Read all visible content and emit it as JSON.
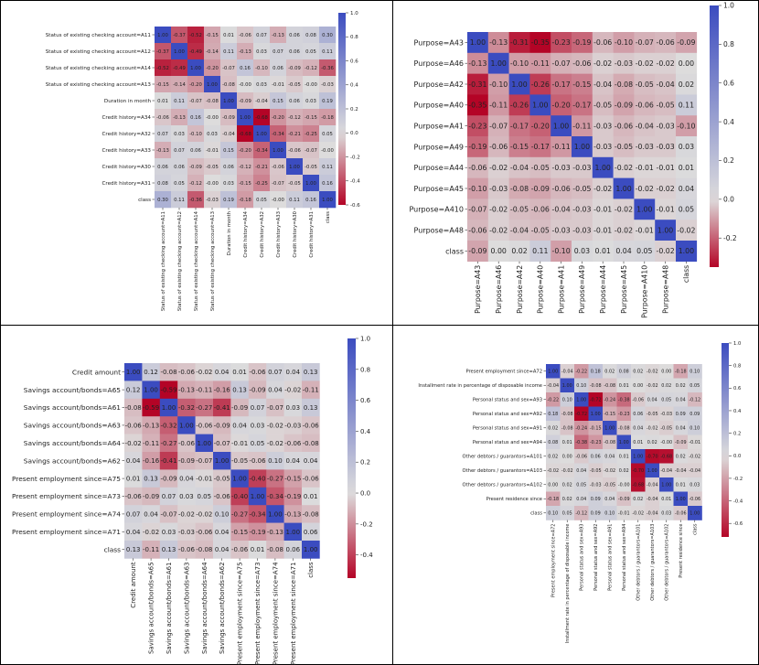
{
  "colormap": {
    "low": "#b40426",
    "mid": "#dddcdc",
    "high": "#3b4cc0"
  },
  "chart_data": [
    {
      "type": "heatmap",
      "title": "",
      "rows": [
        "Status of existing checking account=A11",
        "Status of existing checking account=A12",
        "Status of existing checking account=A14",
        "Status of existing checking account=A13",
        "Duration in month",
        "Credit history=A34",
        "Credit history=A32",
        "Credit history=A33",
        "Credit history=A30",
        "Credit history=A31",
        "class"
      ],
      "cols": [
        "Status of existing checking account=A11",
        "Status of existing checking account=A12",
        "Status of existing checking account=A14",
        "Status of existing checking account=A13",
        "Duration in month",
        "Credit history=A34",
        "Credit history=A32",
        "Credit history=A33",
        "Credit history=A30",
        "Credit history=A31",
        "class"
      ],
      "labels": [
        [
          "1.00",
          "-0.37",
          "-0.52",
          "-0.15",
          "0.01",
          "-0.06",
          "0.07",
          "-0.13",
          "0.06",
          "0.08",
          "0.30"
        ],
        [
          "-0.37",
          "1.00",
          "-0.49",
          "-0.14",
          "0.11",
          "-0.13",
          "0.03",
          "0.07",
          "0.06",
          "0.05",
          "0.11"
        ],
        [
          "-0.52",
          "-0.49",
          "1.00",
          "-0.20",
          "-0.07",
          "0.16",
          "-0.10",
          "0.06",
          "-0.09",
          "-0.12",
          "-0.36"
        ],
        [
          "-0.15",
          "-0.14",
          "-0.20",
          "1.00",
          "-0.08",
          "-0.00",
          "0.03",
          "-0.01",
          "-0.05",
          "-0.00",
          "-0.03"
        ],
        [
          "0.01",
          "0.11",
          "-0.07",
          "-0.08",
          "1.00",
          "-0.09",
          "-0.04",
          "0.15",
          "0.06",
          "0.03",
          "0.19"
        ],
        [
          "-0.06",
          "-0.13",
          "0.16",
          "-0.00",
          "-0.09",
          "1.00",
          "-0.68",
          "-0.20",
          "-0.12",
          "-0.15",
          "-0.18"
        ],
        [
          "0.07",
          "0.03",
          "-0.10",
          "0.03",
          "-0.04",
          "-0.68",
          "1.00",
          "-0.34",
          "-0.21",
          "-0.25",
          "0.05"
        ],
        [
          "-0.13",
          "0.07",
          "0.06",
          "-0.01",
          "0.15",
          "-0.20",
          "-0.34",
          "1.00",
          "-0.06",
          "-0.07",
          "-0.00"
        ],
        [
          "0.06",
          "0.06",
          "-0.09",
          "-0.05",
          "0.06",
          "-0.12",
          "-0.21",
          "-0.06",
          "1.00",
          "-0.05",
          "0.11"
        ],
        [
          "0.08",
          "0.05",
          "-0.12",
          "-0.00",
          "0.03",
          "-0.15",
          "-0.25",
          "-0.07",
          "-0.05",
          "1.00",
          "0.16"
        ],
        [
          "0.30",
          "0.11",
          "-0.36",
          "-0.03",
          "0.19",
          "-0.18",
          "0.05",
          "-0.00",
          "0.11",
          "0.16",
          "1.00"
        ]
      ],
      "vmin": -0.6,
      "vmax": 1.0,
      "colorbar_ticks": [
        "1.0",
        "0.8",
        "0.6",
        "0.4",
        "0.2",
        "0.0",
        "-0.2",
        "-0.4",
        "-0.6"
      ]
    },
    {
      "type": "heatmap",
      "title": "",
      "rows": [
        "Purpose=A43",
        "Purpose=A46",
        "Purpose=A42",
        "Purpose=A40",
        "Purpose=A41",
        "Purpose=A49",
        "Purpose=A44",
        "Purpose=A45",
        "Purpose=A410",
        "Purpose=A48",
        "class"
      ],
      "cols": [
        "Purpose=A43",
        "Purpose=A46",
        "Purpose=A42",
        "Purpose=A40",
        "Purpose=A41",
        "Purpose=A49",
        "Purpose=A44",
        "Purpose=A45",
        "Purpose=A410",
        "Purpose=A48",
        "class"
      ],
      "labels": [
        [
          "1.00",
          "-0.13",
          "-0.31",
          "-0.35",
          "-0.23",
          "-0.19",
          "-0.06",
          "-0.10",
          "-0.07",
          "-0.06",
          "-0.09"
        ],
        [
          "-0.13",
          "1.00",
          "-0.10",
          "-0.11",
          "-0.07",
          "-0.06",
          "-0.02",
          "-0.03",
          "-0.02",
          "-0.02",
          "0.00"
        ],
        [
          "-0.31",
          "-0.10",
          "1.00",
          "-0.26",
          "-0.17",
          "-0.15",
          "-0.04",
          "-0.08",
          "-0.05",
          "-0.04",
          "0.02"
        ],
        [
          "-0.35",
          "-0.11",
          "-0.26",
          "1.00",
          "-0.20",
          "-0.17",
          "-0.05",
          "-0.09",
          "-0.06",
          "-0.05",
          "0.11"
        ],
        [
          "-0.23",
          "-0.07",
          "-0.17",
          "-0.20",
          "1.00",
          "-0.11",
          "-0.03",
          "-0.06",
          "-0.04",
          "-0.03",
          "-0.10"
        ],
        [
          "-0.19",
          "-0.06",
          "-0.15",
          "-0.17",
          "-0.11",
          "1.00",
          "-0.03",
          "-0.05",
          "-0.03",
          "-0.03",
          "0.03"
        ],
        [
          "-0.06",
          "-0.02",
          "-0.04",
          "-0.05",
          "-0.03",
          "-0.03",
          "1.00",
          "-0.02",
          "-0.01",
          "-0.01",
          "0.01"
        ],
        [
          "-0.10",
          "-0.03",
          "-0.08",
          "-0.09",
          "-0.06",
          "-0.05",
          "-0.02",
          "1.00",
          "-0.02",
          "-0.02",
          "0.04"
        ],
        [
          "-0.07",
          "-0.02",
          "-0.05",
          "-0.06",
          "-0.04",
          "-0.03",
          "-0.01",
          "-0.02",
          "1.00",
          "-0.01",
          "0.05"
        ],
        [
          "-0.06",
          "-0.02",
          "-0.04",
          "-0.05",
          "-0.03",
          "-0.03",
          "-0.01",
          "-0.02",
          "-0.01",
          "1.00",
          "-0.02"
        ],
        [
          "-0.09",
          "0.00",
          "0.02",
          "0.11",
          "-0.10",
          "0.03",
          "0.01",
          "0.04",
          "0.05",
          "-0.02",
          "1.00"
        ]
      ],
      "vmin": -0.35,
      "vmax": 1.0,
      "colorbar_ticks": [
        "1.0",
        "0.8",
        "0.6",
        "0.4",
        "0.2",
        "0.0",
        "-0.2"
      ]
    },
    {
      "type": "heatmap",
      "title": "",
      "rows": [
        "Credit amount",
        "Savings account/bonds=A65",
        "Savings account/bonds=A61",
        "Savings account/bonds=A63",
        "Savings account/bonds=A64",
        "Savings account/bonds=A62",
        "Present employment since=A75",
        "Present employment since=A73",
        "Present employment since=A74",
        "Present employment since=A71",
        "class"
      ],
      "cols": [
        "Credit amount",
        "Savings account/bonds=A65",
        "Savings account/bonds=A61",
        "Savings account/bonds=A63",
        "Savings account/bonds=A64",
        "Savings account/bonds=A62",
        "Present employment since=A75",
        "Present employment since=A73",
        "Present employment since=A74",
        "Present employment since=A71",
        "class"
      ],
      "labels": [
        [
          "1.00",
          "0.12",
          "-0.08",
          "-0.06",
          "-0.02",
          "0.04",
          "0.01",
          "-0.06",
          "0.07",
          "0.04",
          "0.13"
        ],
        [
          "0.12",
          "1.00",
          "-0.59",
          "-0.13",
          "-0.11",
          "-0.16",
          "0.13",
          "-0.09",
          "0.04",
          "-0.02",
          "-0.11"
        ],
        [
          "-0.08",
          "-0.59",
          "1.00",
          "-0.32",
          "-0.27",
          "-0.41",
          "-0.09",
          "0.07",
          "-0.07",
          "0.03",
          "0.13"
        ],
        [
          "-0.06",
          "-0.13",
          "-0.32",
          "1.00",
          "-0.06",
          "-0.09",
          "0.04",
          "0.03",
          "-0.02",
          "-0.03",
          "-0.06"
        ],
        [
          "-0.02",
          "-0.11",
          "-0.27",
          "-0.06",
          "1.00",
          "-0.07",
          "-0.01",
          "0.05",
          "-0.02",
          "-0.06",
          "-0.08"
        ],
        [
          "0.04",
          "-0.16",
          "-0.41",
          "-0.09",
          "-0.07",
          "1.00",
          "-0.05",
          "-0.06",
          "0.10",
          "0.04",
          "0.04"
        ],
        [
          "0.01",
          "0.13",
          "-0.09",
          "0.04",
          "-0.01",
          "-0.05",
          "1.00",
          "-0.40",
          "-0.27",
          "-0.15",
          "-0.06"
        ],
        [
          "-0.06",
          "-0.09",
          "0.07",
          "0.03",
          "0.05",
          "-0.06",
          "-0.40",
          "1.00",
          "-0.34",
          "-0.19",
          "0.01"
        ],
        [
          "0.07",
          "0.04",
          "-0.07",
          "-0.02",
          "-0.02",
          "0.10",
          "-0.27",
          "-0.34",
          "1.00",
          "-0.13",
          "-0.08"
        ],
        [
          "0.04",
          "-0.02",
          "0.03",
          "-0.03",
          "-0.06",
          "0.04",
          "-0.15",
          "-0.19",
          "-0.13",
          "1.00",
          "0.06"
        ],
        [
          "0.13",
          "-0.11",
          "0.13",
          "-0.06",
          "-0.08",
          "0.04",
          "-0.06",
          "0.01",
          "-0.08",
          "0.06",
          "1.00"
        ]
      ],
      "vmin": -0.55,
      "vmax": 1.0,
      "colorbar_ticks": [
        "1.0",
        "0.8",
        "0.6",
        "0.4",
        "0.2",
        "0.0",
        "-0.2",
        "-0.4"
      ]
    },
    {
      "type": "heatmap",
      "title": "",
      "rows": [
        "Present employment since=A72",
        "Installment rate in percentage of disposable income",
        "Personal status and sex=A93",
        "Personal status and sex=A92",
        "Personal status and sex=A91",
        "Personal status and sex=A94",
        "Other debtors / guarantors=A101",
        "Other debtors / guarantors=A103",
        "Other debtors / guarantors=A102",
        "Present residence since",
        "class"
      ],
      "cols": [
        "Present employment since=A72",
        "Installment rate in percentage of disposable income",
        "Personal status and sex=A93",
        "Personal status and sex=A92",
        "Personal status and sex=A91",
        "Personal status and sex=A94",
        "Other debtors / guarantors=A101",
        "Other debtors / guarantors=A103",
        "Other debtors / guarantors=A102",
        "Present residence since",
        "class"
      ],
      "labels": [
        [
          "1.00",
          "-0.04",
          "-0.22",
          "0.18",
          "0.02",
          "0.08",
          "0.02",
          "-0.02",
          "0.00",
          "-0.18",
          "0.10"
        ],
        [
          "-0.04",
          "1.00",
          "0.10",
          "-0.08",
          "-0.08",
          "0.01",
          "0.00",
          "-0.02",
          "0.02",
          "0.02",
          "0.05"
        ],
        [
          "-0.22",
          "0.10",
          "1.00",
          "-0.72",
          "-0.24",
          "-0.38",
          "-0.06",
          "0.04",
          "0.05",
          "0.04",
          "-0.12"
        ],
        [
          "0.18",
          "-0.08",
          "-0.72",
          "1.00",
          "-0.15",
          "-0.23",
          "0.06",
          "-0.05",
          "-0.03",
          "0.09",
          "0.09"
        ],
        [
          "0.02",
          "-0.08",
          "-0.24",
          "-0.15",
          "1.00",
          "-0.08",
          "0.04",
          "-0.02",
          "-0.05",
          "0.04",
          "0.10"
        ],
        [
          "0.08",
          "0.01",
          "-0.38",
          "-0.23",
          "-0.08",
          "1.00",
          "0.01",
          "0.02",
          "-0.00",
          "-0.09",
          "-0.01"
        ],
        [
          "0.02",
          "0.00",
          "-0.06",
          "0.06",
          "0.04",
          "0.01",
          "1.00",
          "-0.70",
          "-0.68",
          "0.02",
          "-0.02"
        ],
        [
          "-0.02",
          "-0.02",
          "0.04",
          "-0.05",
          "-0.02",
          "0.02",
          "-0.70",
          "1.00",
          "-0.04",
          "-0.04",
          "-0.04"
        ],
        [
          "0.00",
          "0.02",
          "0.05",
          "-0.03",
          "-0.05",
          "-0.00",
          "-0.68",
          "-0.04",
          "1.00",
          "0.01",
          "0.03"
        ],
        [
          "-0.18",
          "0.02",
          "0.04",
          "0.09",
          "0.04",
          "-0.09",
          "0.02",
          "-0.04",
          "0.01",
          "1.00",
          "-0.06"
        ],
        [
          "0.10",
          "0.05",
          "-0.12",
          "0.09",
          "0.10",
          "-0.01",
          "-0.02",
          "-0.04",
          "0.03",
          "-0.06",
          "1.00"
        ]
      ],
      "vmin": -0.72,
      "vmax": 1.0,
      "colorbar_ticks": [
        "1.0",
        "0.8",
        "0.6",
        "0.4",
        "0.2",
        "0.0",
        "-0.2",
        "-0.4",
        "-0.6"
      ]
    }
  ]
}
